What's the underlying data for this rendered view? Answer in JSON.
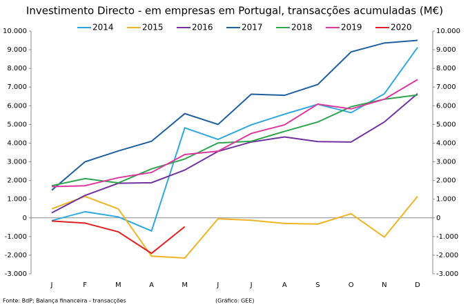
{
  "chart_data": {
    "type": "line",
    "title": "Investimento Directo - em empresas em Portugal, transacções acumuladas (M€)",
    "categories": [
      "J",
      "F",
      "M",
      "A",
      "M",
      "J",
      "J",
      "A",
      "S",
      "O",
      "N",
      "D"
    ],
    "series": [
      {
        "name": "2014",
        "color": "#2fa8e0",
        "values": [
          -150,
          330,
          50,
          -700,
          4820,
          4200,
          4980,
          5550,
          6080,
          5630,
          6640,
          9120
        ]
      },
      {
        "name": "2015",
        "color": "#f0b323",
        "values": [
          480,
          1150,
          480,
          -2050,
          -2150,
          -50,
          -130,
          -300,
          -330,
          220,
          -1030,
          1150
        ]
      },
      {
        "name": "2016",
        "color": "#7030a0",
        "values": [
          270,
          1200,
          1850,
          1880,
          2560,
          3560,
          4060,
          4330,
          4080,
          4060,
          5130,
          6650
        ]
      },
      {
        "name": "2017",
        "color": "#1f5fa0",
        "values": [
          1480,
          3000,
          3580,
          4100,
          5580,
          5000,
          6620,
          6560,
          7140,
          8880,
          9360,
          9500
        ]
      },
      {
        "name": "2018",
        "color": "#2ca44c",
        "values": [
          1720,
          2100,
          1870,
          2620,
          3150,
          4010,
          4100,
          4630,
          5130,
          5950,
          6350,
          6580
        ]
      },
      {
        "name": "2019",
        "color": "#e0359e",
        "values": [
          1670,
          1720,
          2150,
          2430,
          3390,
          3570,
          4520,
          4980,
          6090,
          5830,
          6350,
          7400
        ]
      },
      {
        "name": "2020",
        "color": "#e02020",
        "values": [
          -170,
          -280,
          -750,
          -1900,
          -470,
          null,
          null,
          null,
          null,
          null,
          null,
          null
        ]
      }
    ],
    "ylim": [
      -3000,
      10000
    ],
    "yticks": [
      {
        "value": -3000,
        "label": "-3.000"
      },
      {
        "value": -2000,
        "label": "-2.000"
      },
      {
        "value": -1000,
        "label": "-1.000"
      },
      0,
      {
        "value": 1000,
        "label": "1.000"
      },
      {
        "value": 2000,
        "label": "2.000"
      },
      {
        "value": 3000,
        "label": "3.000"
      },
      {
        "value": 4000,
        "label": "4.000"
      },
      {
        "value": 5000,
        "label": "5.000"
      },
      {
        "value": 6000,
        "label": "6.000"
      },
      {
        "value": 7000,
        "label": "7.000"
      },
      {
        "value": 8000,
        "label": "8.000"
      },
      {
        "value": 9000,
        "label": "9.000"
      },
      {
        "value": 10000,
        "label": "10.000"
      }
    ],
    "grid": false,
    "source": "Fonte: BdP; Balança financeira - transacções",
    "credit": "(Gráfico: GEE)"
  }
}
